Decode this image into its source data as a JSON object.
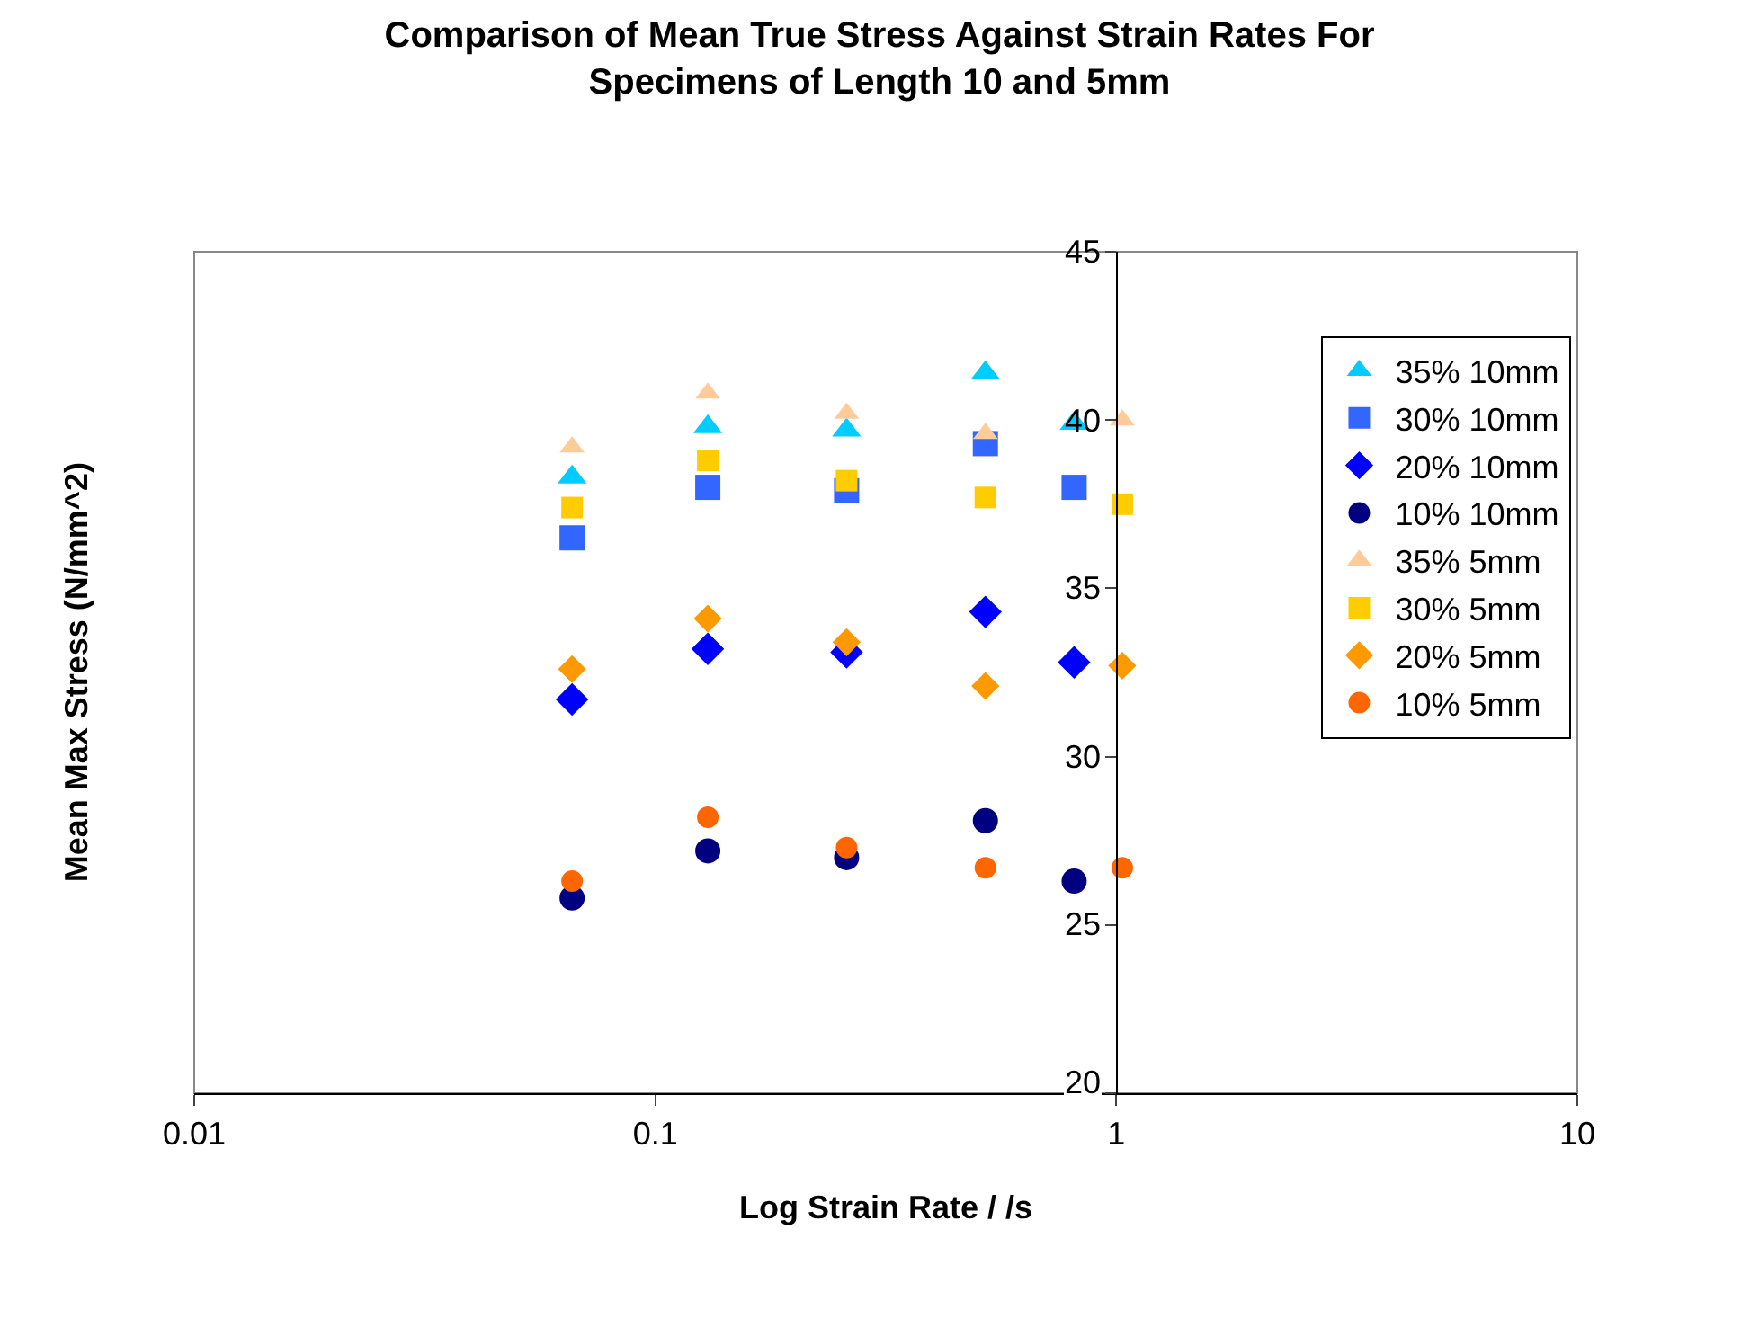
{
  "chart_data": {
    "type": "scatter",
    "title": "Comparison of Mean True Stress Against Strain Rates For\nSpecimens of Length 10 and 5mm",
    "xlabel": "Log Strain Rate / /s",
    "ylabel": "Mean Max Stress (N/mm^2)",
    "log": "x",
    "xlim": [
      0.01,
      10
    ],
    "xticks": [
      0.01,
      0.1,
      1,
      10
    ],
    "ylim": [
      20,
      45
    ],
    "yticks": [
      20,
      25,
      30,
      35,
      40,
      45
    ],
    "grid": false,
    "legend": "right",
    "series": [
      {
        "name": "35% 10mm",
        "color": "#00ccff",
        "marker": "triangle",
        "x": [
          0.066,
          0.13,
          0.26,
          0.52,
          0.81
        ],
        "values": [
          38.3,
          39.8,
          39.7,
          41.4,
          39.9
        ]
      },
      {
        "name": "30% 10mm",
        "color": "#3366ff",
        "marker": "square",
        "x": [
          0.066,
          0.13,
          0.26,
          0.52,
          0.81
        ],
        "values": [
          36.5,
          38.0,
          37.9,
          39.3,
          38.0
        ]
      },
      {
        "name": "20% 10mm",
        "color": "#0000ff",
        "marker": "diamond",
        "x": [
          0.066,
          0.13,
          0.26,
          0.52,
          0.81
        ],
        "values": [
          31.7,
          33.2,
          33.1,
          34.3,
          32.8
        ]
      },
      {
        "name": "10% 10mm",
        "color": "#000080",
        "marker": "circle",
        "x": [
          0.066,
          0.13,
          0.26,
          0.52,
          0.81
        ],
        "values": [
          25.8,
          27.2,
          27.0,
          28.1,
          26.3
        ]
      },
      {
        "name": "35% 5mm",
        "color": "#ffcc99",
        "marker": "triangle",
        "x": [
          0.066,
          0.13,
          0.26,
          0.52,
          1.03
        ],
        "values": [
          39.2,
          40.8,
          40.2,
          39.6,
          40.0
        ]
      },
      {
        "name": "30% 5mm",
        "color": "#ffcc00",
        "marker": "square",
        "x": [
          0.066,
          0.13,
          0.26,
          0.52,
          1.03
        ],
        "values": [
          37.4,
          38.8,
          38.2,
          37.7,
          37.5
        ]
      },
      {
        "name": "20% 5mm",
        "color": "#ff9900",
        "marker": "diamond",
        "x": [
          0.066,
          0.13,
          0.26,
          0.52,
          1.03
        ],
        "values": [
          32.6,
          34.1,
          33.4,
          32.1,
          32.7
        ]
      },
      {
        "name": "10% 5mm",
        "color": "#ff6600",
        "marker": "circle",
        "x": [
          0.066,
          0.13,
          0.26,
          0.52,
          1.03
        ],
        "values": [
          26.3,
          28.2,
          27.3,
          26.7,
          26.7
        ]
      }
    ]
  }
}
